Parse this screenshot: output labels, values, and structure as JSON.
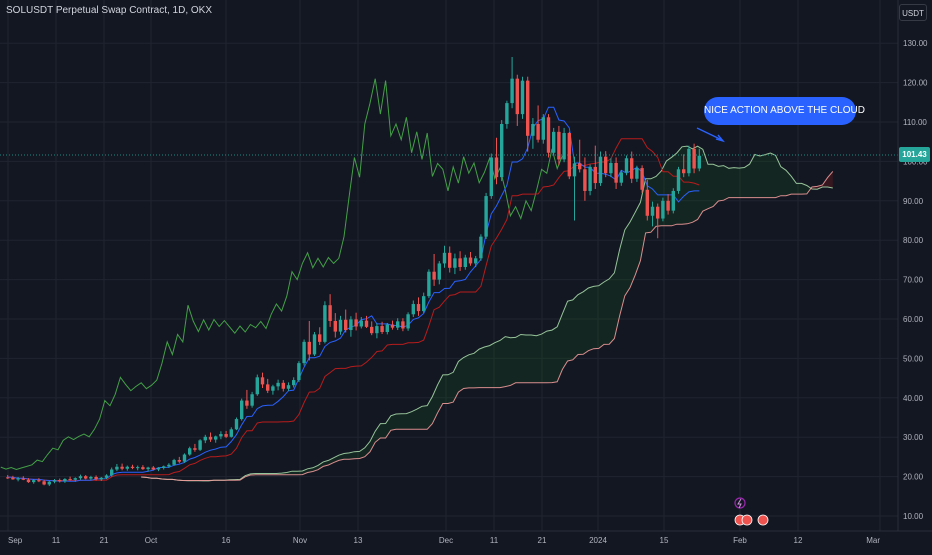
{
  "header": {
    "title": "SOLUSDT Perpetual Swap Contract, 1D, OKX",
    "currency": "USDT",
    "last_price": "101.43"
  },
  "annotation": {
    "text": "NICE ACTION ABOVE THE CLOUD"
  },
  "colors": {
    "background": "#131722",
    "grid": "#1f2430",
    "up": "#26a69a",
    "down": "#ef5350",
    "conversion_line": "#2962ff",
    "base_line": "#b71c1c",
    "lagging_span": "#43a047",
    "leading_span_a": "#a5d6a7",
    "leading_span_b": "#ef9a9a",
    "callout": "#2962ff",
    "axis_text": "#b2b5be"
  },
  "chart_data": {
    "type": "candlestick",
    "indicator": "ichimoku",
    "x_labels": [
      "Sep",
      "11",
      "21",
      "Oct",
      "16",
      "Nov",
      "13",
      "Dec",
      "11",
      "21",
      "2024",
      "15",
      "Feb",
      "12",
      "Mar"
    ],
    "y_ticks": [
      "130.00",
      "120.00",
      "110.00",
      "100.00",
      "90.00",
      "80.00",
      "70.00",
      "60.00",
      "50.00",
      "40.00",
      "30.00",
      "20.00",
      "10.00"
    ],
    "ylim": [
      8,
      136
    ],
    "last_price": 101.43,
    "grid": true,
    "candles": [
      [
        19.8,
        20.4,
        19.4,
        19.7
      ],
      [
        19.7,
        20.2,
        19.2,
        19.3
      ],
      [
        19.3,
        19.9,
        18.8,
        19.5
      ],
      [
        19.5,
        20.1,
        19.1,
        19.2
      ],
      [
        19.2,
        19.6,
        18.4,
        18.6
      ],
      [
        18.6,
        19.3,
        18.2,
        19.1
      ],
      [
        19.1,
        19.6,
        18.6,
        18.8
      ],
      [
        18.8,
        19.2,
        17.8,
        18.0
      ],
      [
        18.0,
        18.9,
        17.6,
        18.7
      ],
      [
        18.7,
        19.4,
        18.3,
        19.1
      ],
      [
        19.1,
        19.5,
        18.5,
        18.8
      ],
      [
        18.8,
        19.6,
        18.4,
        19.4
      ],
      [
        19.4,
        20.0,
        19.0,
        19.2
      ],
      [
        19.2,
        19.8,
        18.7,
        19.6
      ],
      [
        19.6,
        20.5,
        19.2,
        20.1
      ],
      [
        20.1,
        20.4,
        19.3,
        19.5
      ],
      [
        19.5,
        20.2,
        19.1,
        19.9
      ],
      [
        19.9,
        20.3,
        19.0,
        19.3
      ],
      [
        19.3,
        19.9,
        18.9,
        19.7
      ],
      [
        19.7,
        20.6,
        19.4,
        20.3
      ],
      [
        20.3,
        22.3,
        20.0,
        21.8
      ],
      [
        21.8,
        23.2,
        21.4,
        22.5
      ],
      [
        22.5,
        23.3,
        21.6,
        22.0
      ],
      [
        22.0,
        22.8,
        21.5,
        22.5
      ],
      [
        22.5,
        23.0,
        21.9,
        22.2
      ],
      [
        22.2,
        22.8,
        21.6,
        22.4
      ],
      [
        22.4,
        22.9,
        21.7,
        21.9
      ],
      [
        21.9,
        22.5,
        21.3,
        22.3
      ],
      [
        22.3,
        22.7,
        21.6,
        21.8
      ],
      [
        21.8,
        22.4,
        21.4,
        22.2
      ],
      [
        22.2,
        22.8,
        21.8,
        22.6
      ],
      [
        22.6,
        23.4,
        22.2,
        23.0
      ],
      [
        23.0,
        24.5,
        22.8,
        24.2
      ],
      [
        24.2,
        25.0,
        23.4,
        23.8
      ],
      [
        23.8,
        25.9,
        23.5,
        25.6
      ],
      [
        25.6,
        27.6,
        25.3,
        27.2
      ],
      [
        27.2,
        28.3,
        26.3,
        26.8
      ],
      [
        26.8,
        29.5,
        26.5,
        29.2
      ],
      [
        29.2,
        30.6,
        28.5,
        30.1
      ],
      [
        30.1,
        31.2,
        28.8,
        29.4
      ],
      [
        29.4,
        30.4,
        28.6,
        30.2
      ],
      [
        30.2,
        31.5,
        29.5,
        30.8
      ],
      [
        30.8,
        31.6,
        29.8,
        30.1
      ],
      [
        30.1,
        32.5,
        29.9,
        32.0
      ],
      [
        32.0,
        35.0,
        31.8,
        34.6
      ],
      [
        34.6,
        39.8,
        34.2,
        39.3
      ],
      [
        39.3,
        42.0,
        37.2,
        38.0
      ],
      [
        38.0,
        41.5,
        37.5,
        40.9
      ],
      [
        40.9,
        45.9,
        40.5,
        45.2
      ],
      [
        45.2,
        46.4,
        42.5,
        43.4
      ],
      [
        43.4,
        44.8,
        41.2,
        41.8
      ],
      [
        41.8,
        43.3,
        40.8,
        42.9
      ],
      [
        42.9,
        44.6,
        41.9,
        43.8
      ],
      [
        43.8,
        44.5,
        41.6,
        42.3
      ],
      [
        42.3,
        43.9,
        41.8,
        43.2
      ],
      [
        43.2,
        45.2,
        42.6,
        44.5
      ],
      [
        44.5,
        49.3,
        44.0,
        48.8
      ],
      [
        48.8,
        54.8,
        48.2,
        54.2
      ],
      [
        54.2,
        59.5,
        49.5,
        51.0
      ],
      [
        51.0,
        56.7,
        50.6,
        56.1
      ],
      [
        56.1,
        57.9,
        53.4,
        54.2
      ],
      [
        54.2,
        64.5,
        53.8,
        63.5
      ],
      [
        63.5,
        66.3,
        58.0,
        59.5
      ],
      [
        59.5,
        61.5,
        55.3,
        56.8
      ],
      [
        56.8,
        60.8,
        56.0,
        59.8
      ],
      [
        59.8,
        62.4,
        56.6,
        57.2
      ],
      [
        57.2,
        60.7,
        55.5,
        59.9
      ],
      [
        59.9,
        61.6,
        57.1,
        58.1
      ],
      [
        58.1,
        60.5,
        57.6,
        59.6
      ],
      [
        59.6,
        60.8,
        57.7,
        58.0
      ],
      [
        58.0,
        59.4,
        55.9,
        56.4
      ],
      [
        56.4,
        58.9,
        55.1,
        58.2
      ],
      [
        58.2,
        59.3,
        56.2,
        56.7
      ],
      [
        56.7,
        59.0,
        56.1,
        58.6
      ],
      [
        58.6,
        59.6,
        57.3,
        57.8
      ],
      [
        57.8,
        60.2,
        57.2,
        59.4
      ],
      [
        59.4,
        60.2,
        56.9,
        57.6
      ],
      [
        57.6,
        61.7,
        57.0,
        61.2
      ],
      [
        61.2,
        64.7,
        60.5,
        63.8
      ],
      [
        63.8,
        65.5,
        60.8,
        62.0
      ],
      [
        62.0,
        66.7,
        61.5,
        65.8
      ],
      [
        65.8,
        72.6,
        65.3,
        72.0
      ],
      [
        72.0,
        76.5,
        68.4,
        70.0
      ],
      [
        70.0,
        74.7,
        68.8,
        74.1
      ],
      [
        74.1,
        78.6,
        73.0,
        76.8
      ],
      [
        76.8,
        78.4,
        71.8,
        73.0
      ],
      [
        73.0,
        76.6,
        71.4,
        75.4
      ],
      [
        75.4,
        77.2,
        72.2,
        73.2
      ],
      [
        73.2,
        76.3,
        72.5,
        75.6
      ],
      [
        75.6,
        77.0,
        73.5,
        74.1
      ],
      [
        74.1,
        76.0,
        73.2,
        75.4
      ],
      [
        75.4,
        81.5,
        74.8,
        80.9
      ],
      [
        80.9,
        92.0,
        80.3,
        91.2
      ],
      [
        91.2,
        102.0,
        90.5,
        101.0
      ],
      [
        101.0,
        106.0,
        94.2,
        96.0
      ],
      [
        96.0,
        110.5,
        95.0,
        109.5
      ],
      [
        109.5,
        115.4,
        108.3,
        114.8
      ],
      [
        114.8,
        126.5,
        113.5,
        121.0
      ],
      [
        121.0,
        122.0,
        109.0,
        112.0
      ],
      [
        112.0,
        121.5,
        110.8,
        120.5
      ],
      [
        120.5,
        121.5,
        102.5,
        106.5
      ],
      [
        106.5,
        111.0,
        103.2,
        109.5
      ],
      [
        109.5,
        114.2,
        104.8,
        105.5
      ],
      [
        105.5,
        112.0,
        104.5,
        111.2
      ],
      [
        111.2,
        112.0,
        101.0,
        102.2
      ],
      [
        102.2,
        108.5,
        101.5,
        107.5
      ],
      [
        107.5,
        109.0,
        99.0,
        100.5
      ],
      [
        100.5,
        108.5,
        99.8,
        107.2
      ],
      [
        107.2,
        107.5,
        95.5,
        96.2
      ],
      [
        96.2,
        101.2,
        85.0,
        99.5
      ],
      [
        99.5,
        105.5,
        97.2,
        98.0
      ],
      [
        98.0,
        101.0,
        90.0,
        92.5
      ],
      [
        92.5,
        99.2,
        91.4,
        98.6
      ],
      [
        98.6,
        104.0,
        93.0,
        94.5
      ],
      [
        94.5,
        102.5,
        93.8,
        101.2
      ],
      [
        101.2,
        102.6,
        96.0,
        97.0
      ],
      [
        97.0,
        100.8,
        96.0,
        99.6
      ],
      [
        99.6,
        101.0,
        93.0,
        94.6
      ],
      [
        94.6,
        97.8,
        93.8,
        97.2
      ],
      [
        97.2,
        101.5,
        96.5,
        100.8
      ],
      [
        100.8,
        102.5,
        94.5,
        95.6
      ],
      [
        95.6,
        98.9,
        94.8,
        98.3
      ],
      [
        98.3,
        99.0,
        92.0,
        92.8
      ],
      [
        92.8,
        95.3,
        85.0,
        86.2
      ],
      [
        86.2,
        89.8,
        83.5,
        88.5
      ],
      [
        88.5,
        89.3,
        80.5,
        85.5
      ],
      [
        85.5,
        90.8,
        84.8,
        90.0
      ],
      [
        90.0,
        91.7,
        86.5,
        87.5
      ],
      [
        87.5,
        93.2,
        86.8,
        92.5
      ],
      [
        92.5,
        98.6,
        91.8,
        98.0
      ],
      [
        98.0,
        101.8,
        96.0,
        97.0
      ],
      [
        97.0,
        104.0,
        96.2,
        103.2
      ],
      [
        103.2,
        104.5,
        97.0,
        98.2
      ],
      [
        98.2,
        103.2,
        97.5,
        101.43
      ]
    ]
  }
}
